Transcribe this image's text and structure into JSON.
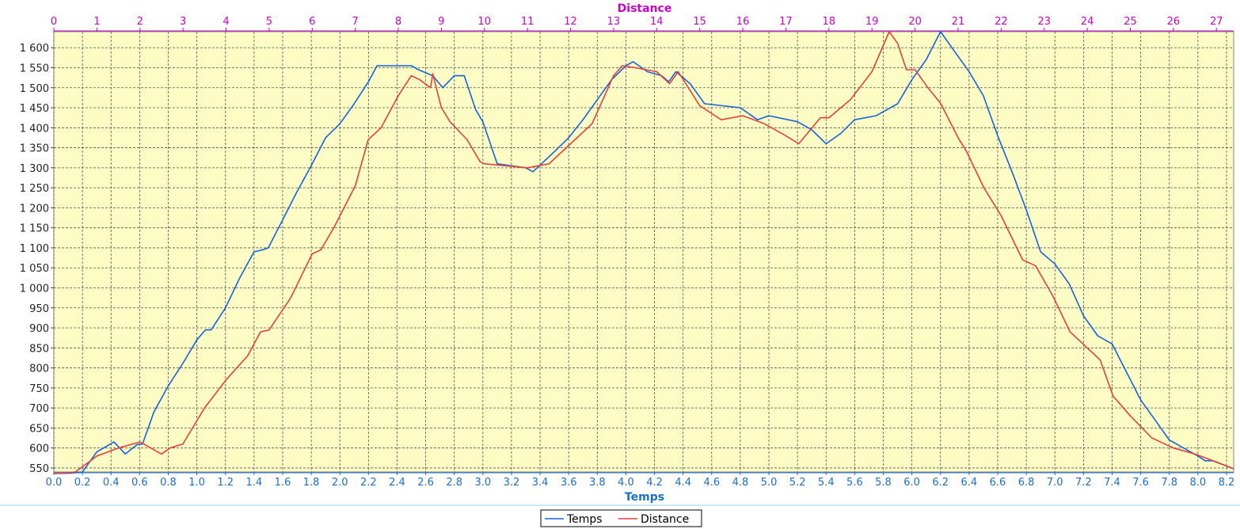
{
  "chart_data": {
    "type": "line",
    "title": "",
    "x_bottom": {
      "label": "Temps",
      "range": [
        0.0,
        8.25
      ],
      "ticks": [
        "0.0",
        "0.2",
        "0.4",
        "0.6",
        "0.8",
        "1.0",
        "1.2",
        "1.4",
        "1.6",
        "1.8",
        "2.0",
        "2.2",
        "2.4",
        "2.6",
        "2.8",
        "3.0",
        "3.2",
        "3.4",
        "3.6",
        "3.8",
        "4.0",
        "4.2",
        "4.4",
        "4.6",
        "4.8",
        "5.0",
        "5.2",
        "5.4",
        "5.6",
        "5.8",
        "6.0",
        "6.2",
        "6.4",
        "6.6",
        "6.8",
        "7.0",
        "7.2",
        "7.4",
        "7.6",
        "7.8",
        "8.0",
        "8.2"
      ],
      "color": "#1a6fd0"
    },
    "x_top": {
      "label": "Distance",
      "range": [
        0,
        27.4
      ],
      "ticks": [
        "0",
        "1",
        "2",
        "3",
        "4",
        "5",
        "6",
        "7",
        "8",
        "9",
        "10",
        "11",
        "12",
        "13",
        "14",
        "15",
        "16",
        "17",
        "18",
        "19",
        "20",
        "21",
        "22",
        "23",
        "24",
        "25",
        "26",
        "27"
      ],
      "color": "#cc00cc"
    },
    "y": {
      "label": "",
      "range": [
        540,
        1640
      ],
      "ticks": [
        "550",
        "600",
        "650",
        "700",
        "750",
        "800",
        "850",
        "900",
        "950",
        "1 000",
        "1 050",
        "1 100",
        "1 150",
        "1 200",
        "1 250",
        "1 300",
        "1 350",
        "1 400",
        "1 450",
        "1 500",
        "1 550",
        "1 600"
      ]
    },
    "grid": true,
    "legend_position": "bottom",
    "series": [
      {
        "name": "Temps",
        "axis": "bottom",
        "color": "#1464dc",
        "points": [
          [
            0.0,
            536
          ],
          [
            0.12,
            537
          ],
          [
            0.2,
            540
          ],
          [
            0.3,
            590
          ],
          [
            0.42,
            615
          ],
          [
            0.5,
            585
          ],
          [
            0.58,
            608
          ],
          [
            0.62,
            610
          ],
          [
            0.7,
            690
          ],
          [
            0.8,
            755
          ],
          [
            0.9,
            810
          ],
          [
            1.0,
            870
          ],
          [
            1.06,
            895
          ],
          [
            1.1,
            895
          ],
          [
            1.2,
            950
          ],
          [
            1.3,
            1025
          ],
          [
            1.4,
            1090
          ],
          [
            1.46,
            1095
          ],
          [
            1.5,
            1100
          ],
          [
            1.6,
            1170
          ],
          [
            1.7,
            1240
          ],
          [
            1.8,
            1305
          ],
          [
            1.9,
            1375
          ],
          [
            2.0,
            1410
          ],
          [
            2.1,
            1460
          ],
          [
            2.2,
            1515
          ],
          [
            2.26,
            1555
          ],
          [
            2.5,
            1555
          ],
          [
            2.55,
            1545
          ],
          [
            2.65,
            1530
          ],
          [
            2.72,
            1500
          ],
          [
            2.8,
            1530
          ],
          [
            2.87,
            1530
          ],
          [
            2.95,
            1445
          ],
          [
            3.0,
            1415
          ],
          [
            3.1,
            1310
          ],
          [
            3.3,
            1300
          ],
          [
            3.35,
            1290
          ],
          [
            3.5,
            1340
          ],
          [
            3.6,
            1375
          ],
          [
            3.7,
            1420
          ],
          [
            3.8,
            1470
          ],
          [
            3.9,
            1520
          ],
          [
            4.0,
            1555
          ],
          [
            4.05,
            1565
          ],
          [
            4.15,
            1540
          ],
          [
            4.25,
            1530
          ],
          [
            4.3,
            1515
          ],
          [
            4.35,
            1540
          ],
          [
            4.45,
            1510
          ],
          [
            4.55,
            1460
          ],
          [
            4.8,
            1450
          ],
          [
            4.92,
            1420
          ],
          [
            5.0,
            1430
          ],
          [
            5.2,
            1415
          ],
          [
            5.3,
            1395
          ],
          [
            5.4,
            1360
          ],
          [
            5.5,
            1385
          ],
          [
            5.6,
            1420
          ],
          [
            5.75,
            1430
          ],
          [
            5.9,
            1460
          ],
          [
            6.0,
            1520
          ],
          [
            6.1,
            1570
          ],
          [
            6.2,
            1640
          ],
          [
            6.3,
            1590
          ],
          [
            6.4,
            1540
          ],
          [
            6.5,
            1480
          ],
          [
            6.6,
            1380
          ],
          [
            6.7,
            1290
          ],
          [
            6.8,
            1195
          ],
          [
            6.9,
            1090
          ],
          [
            7.0,
            1060
          ],
          [
            7.1,
            1010
          ],
          [
            7.2,
            930
          ],
          [
            7.3,
            880
          ],
          [
            7.4,
            860
          ],
          [
            7.5,
            790
          ],
          [
            7.6,
            720
          ],
          [
            7.7,
            670
          ],
          [
            7.8,
            620
          ],
          [
            7.9,
            600
          ],
          [
            8.0,
            580
          ],
          [
            8.05,
            568
          ],
          [
            8.1,
            568
          ],
          [
            8.2,
            555
          ],
          [
            8.25,
            548
          ]
        ]
      },
      {
        "name": "Distance",
        "axis": "top",
        "color": "#e8403c",
        "points": [
          [
            0.0,
            536
          ],
          [
            0.5,
            540
          ],
          [
            1.0,
            580
          ],
          [
            1.5,
            600
          ],
          [
            2.0,
            615
          ],
          [
            2.5,
            585
          ],
          [
            2.7,
            600
          ],
          [
            3.0,
            610
          ],
          [
            3.5,
            700
          ],
          [
            4.0,
            770
          ],
          [
            4.5,
            830
          ],
          [
            4.8,
            890
          ],
          [
            5.0,
            895
          ],
          [
            5.5,
            975
          ],
          [
            6.0,
            1085
          ],
          [
            6.2,
            1095
          ],
          [
            6.5,
            1150
          ],
          [
            7.0,
            1255
          ],
          [
            7.3,
            1370
          ],
          [
            7.6,
            1400
          ],
          [
            8.0,
            1480
          ],
          [
            8.3,
            1530
          ],
          [
            8.5,
            1520
          ],
          [
            8.75,
            1500
          ],
          [
            8.8,
            1535
          ],
          [
            9.0,
            1450
          ],
          [
            9.2,
            1415
          ],
          [
            9.6,
            1370
          ],
          [
            9.9,
            1315
          ],
          [
            10.0,
            1310
          ],
          [
            11.0,
            1300
          ],
          [
            11.5,
            1310
          ],
          [
            12.0,
            1360
          ],
          [
            12.5,
            1410
          ],
          [
            13.0,
            1530
          ],
          [
            13.2,
            1555
          ],
          [
            13.5,
            1550
          ],
          [
            14.0,
            1540
          ],
          [
            14.3,
            1510
          ],
          [
            14.5,
            1540
          ],
          [
            15.0,
            1455
          ],
          [
            15.5,
            1420
          ],
          [
            16.0,
            1430
          ],
          [
            16.5,
            1410
          ],
          [
            17.0,
            1380
          ],
          [
            17.3,
            1360
          ],
          [
            17.8,
            1425
          ],
          [
            18.0,
            1425
          ],
          [
            18.5,
            1470
          ],
          [
            19.0,
            1540
          ],
          [
            19.4,
            1640
          ],
          [
            19.6,
            1610
          ],
          [
            19.8,
            1545
          ],
          [
            20.0,
            1545
          ],
          [
            20.3,
            1500
          ],
          [
            20.6,
            1460
          ],
          [
            21.0,
            1375
          ],
          [
            21.2,
            1340
          ],
          [
            21.6,
            1250
          ],
          [
            22.0,
            1180
          ],
          [
            22.5,
            1070
          ],
          [
            22.8,
            1055
          ],
          [
            23.2,
            980
          ],
          [
            23.6,
            890
          ],
          [
            24.0,
            850
          ],
          [
            24.3,
            820
          ],
          [
            24.6,
            730
          ],
          [
            25.0,
            680
          ],
          [
            25.5,
            625
          ],
          [
            26.0,
            600
          ],
          [
            26.5,
            585
          ],
          [
            27.0,
            565
          ],
          [
            27.4,
            548
          ]
        ]
      }
    ]
  }
}
